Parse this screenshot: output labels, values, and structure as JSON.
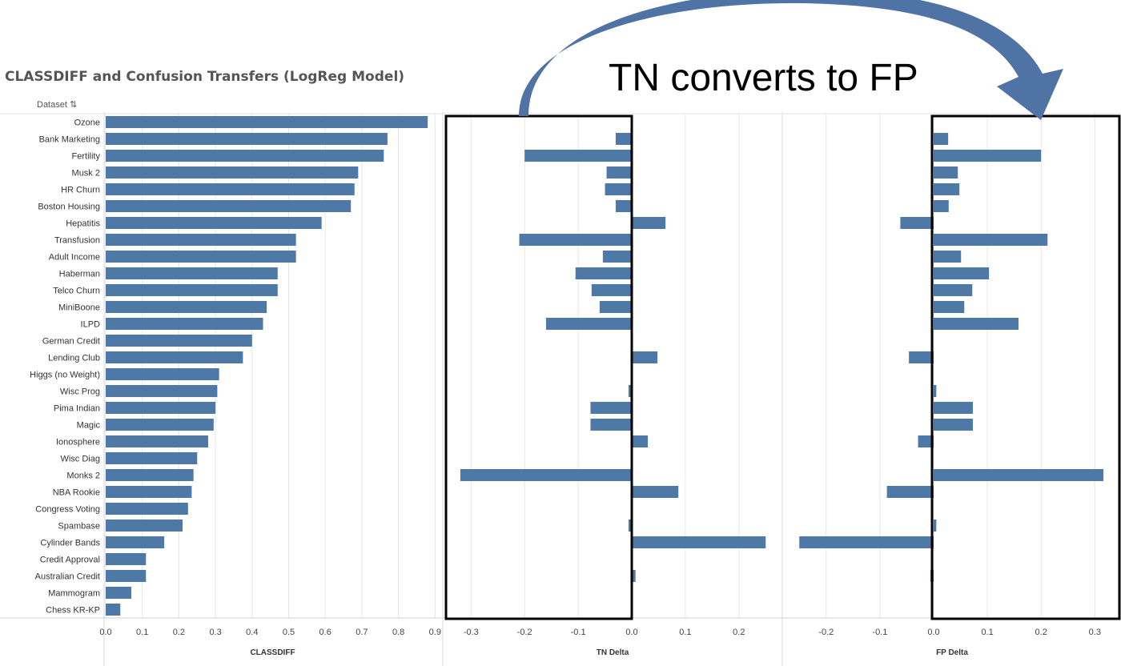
{
  "chart_data": [
    {
      "type": "bar",
      "orientation": "horizontal",
      "title": "CLASSDIFF and Confusion Transfers (LogReg Model)",
      "row_header": "Dataset",
      "xlabel": "CLASSDIFF",
      "xlim": [
        0,
        0.9
      ],
      "ticks": [
        "0.0",
        "0.1",
        "0.2",
        "0.3",
        "0.4",
        "0.5",
        "0.6",
        "0.7",
        "0.8",
        "0.9"
      ],
      "grid": "vertical",
      "categories": [
        "Ozone",
        "Bank Marketing",
        "Fertility",
        "Musk 2",
        "HR Churn",
        "Boston Housing",
        "Hepatitis",
        "Transfusion",
        "Adult Income",
        "Haberman",
        "Telco Churn",
        "MiniBoone",
        "ILPD",
        "German Credit",
        "Lending Club",
        "Higgs (no Weight)",
        "Wisc Prog",
        "Pima Indian",
        "Magic",
        "Ionosphere",
        "Wisc Diag",
        "Monks 2",
        "NBA Rookie",
        "Congress Voting",
        "Spambase",
        "Cylinder Bands",
        "Credit Approval",
        "Australian Credit",
        "Mammogram",
        "Chess KR-KP"
      ],
      "values": [
        0.88,
        0.77,
        0.76,
        0.69,
        0.68,
        0.67,
        0.59,
        0.52,
        0.52,
        0.47,
        0.47,
        0.44,
        0.43,
        0.4,
        0.375,
        0.31,
        0.305,
        0.3,
        0.295,
        0.28,
        0.25,
        0.24,
        0.235,
        0.225,
        0.21,
        0.16,
        0.11,
        0.11,
        0.07,
        0.04
      ]
    },
    {
      "type": "bar",
      "orientation": "horizontal",
      "xlabel": "TN Delta",
      "xlim": [
        -0.32,
        0.27
      ],
      "ticks": [
        "-0.3",
        "-0.2",
        "-0.1",
        "0.0",
        "0.1",
        "0.2"
      ],
      "grid": "vertical",
      "categories": [
        "Ozone",
        "Bank Marketing",
        "Fertility",
        "Musk 2",
        "HR Churn",
        "Boston Housing",
        "Hepatitis",
        "Transfusion",
        "Adult Income",
        "Haberman",
        "Telco Churn",
        "MiniBoone",
        "ILPD",
        "German Credit",
        "Lending Club",
        "Higgs (no Weight)",
        "Wisc Prog",
        "Pima Indian",
        "Magic",
        "Ionosphere",
        "Wisc Diag",
        "Monks 2",
        "NBA Rookie",
        "Congress Voting",
        "Spambase",
        "Cylinder Bands",
        "Credit Approval",
        "Australian Credit",
        "Mammogram",
        "Chess KR-KP"
      ],
      "values": [
        0,
        -0.03,
        -0.2,
        -0.047,
        -0.05,
        -0.03,
        0.063,
        -0.21,
        -0.054,
        -0.105,
        -0.075,
        -0.06,
        -0.16,
        0,
        0.048,
        0,
        -0.006,
        -0.077,
        -0.077,
        0.03,
        0,
        -0.32,
        0.087,
        0,
        -0.006,
        0.25,
        0,
        0.007,
        0,
        0
      ]
    },
    {
      "type": "bar",
      "orientation": "horizontal",
      "xlabel": "FP Delta",
      "xlim": [
        -0.26,
        0.32
      ],
      "ticks": [
        "-0.2",
        "-0.1",
        "0.0",
        "0.1",
        "0.2",
        "0.3"
      ],
      "grid": "vertical",
      "categories": [
        "Ozone",
        "Bank Marketing",
        "Fertility",
        "Musk 2",
        "HR Churn",
        "Boston Housing",
        "Hepatitis",
        "Transfusion",
        "Adult Income",
        "Haberman",
        "Telco Churn",
        "MiniBoone",
        "ILPD",
        "German Credit",
        "Lending Club",
        "Higgs (no Weight)",
        "Wisc Prog",
        "Pima Indian",
        "Magic",
        "Ionosphere",
        "Wisc Diag",
        "Monks 2",
        "NBA Rookie",
        "Congress Voting",
        "Spambase",
        "Cylinder Bands",
        "Credit Approval",
        "Australian Credit",
        "Mammogram",
        "Chess KR-KP"
      ],
      "values": [
        0,
        0.027,
        0.2,
        0.045,
        0.048,
        0.028,
        -0.062,
        0.212,
        0.051,
        0.103,
        0.072,
        0.057,
        0.158,
        0,
        -0.046,
        0,
        0.005,
        0.073,
        0.073,
        -0.029,
        0,
        0.316,
        -0.087,
        0,
        0.005,
        -0.25,
        0,
        -0.006,
        0,
        0
      ]
    }
  ],
  "annotation": {
    "text": "TN converts to FP"
  },
  "colors": {
    "bar": "#4e79a7",
    "arrow": "#4e73a4",
    "grid": "#e6e6e6",
    "highlight_box": "#000000"
  }
}
